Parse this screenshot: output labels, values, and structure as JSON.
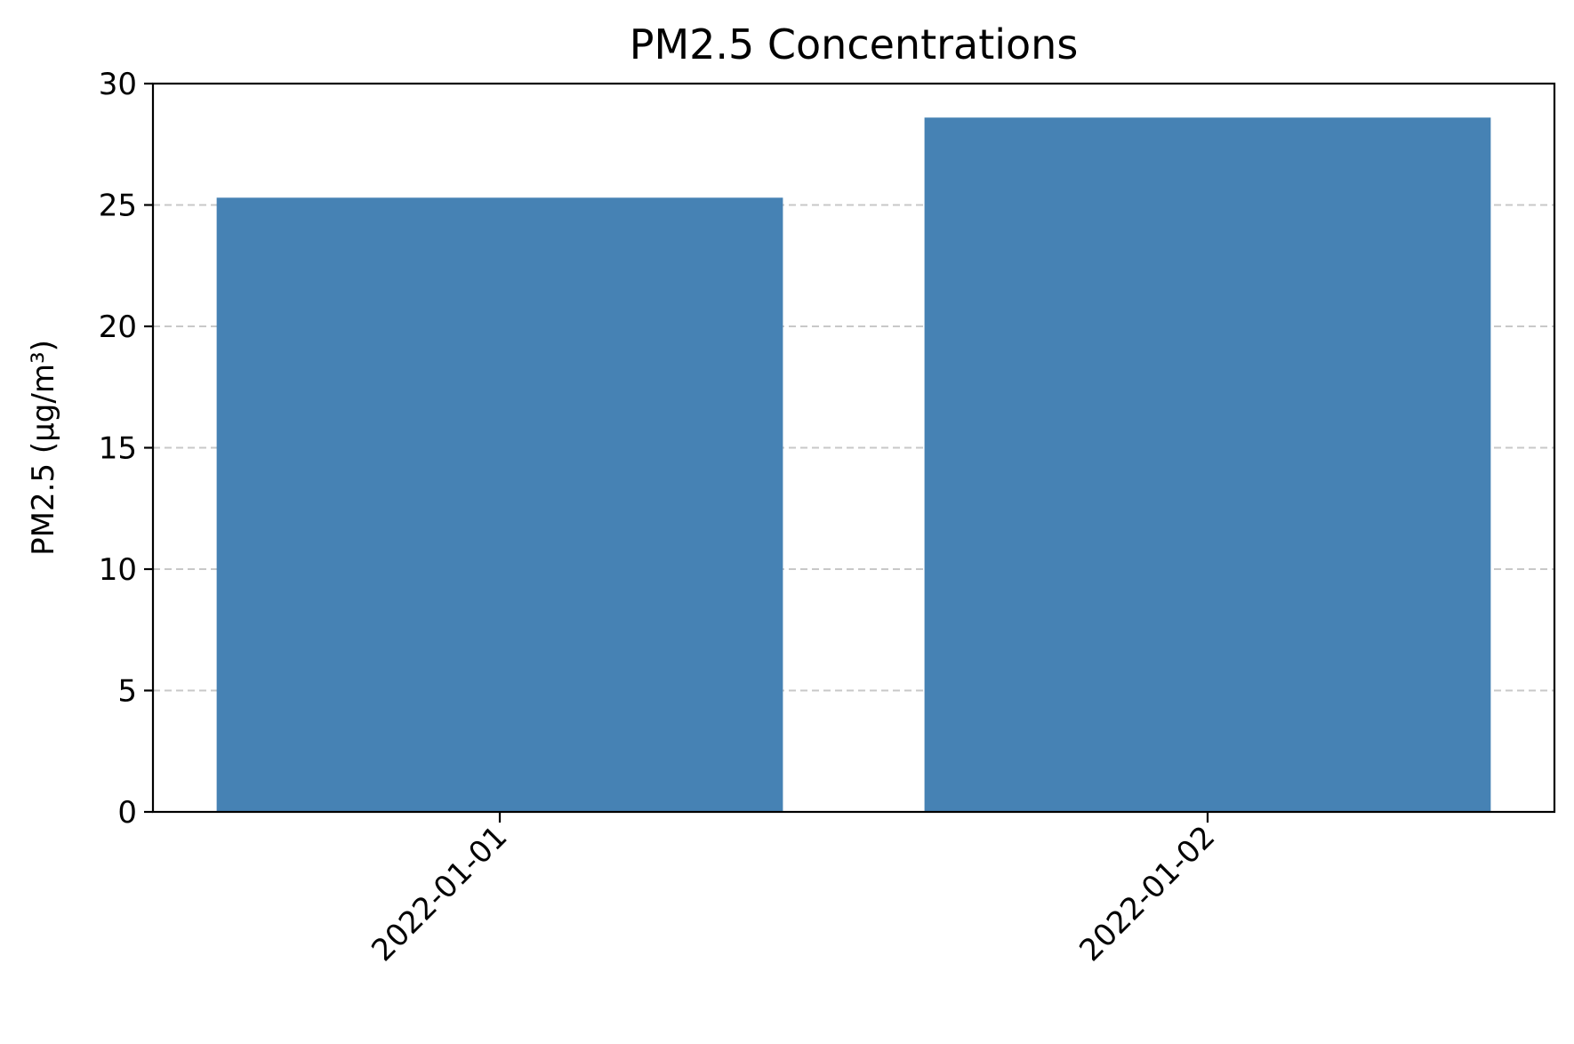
{
  "chart_data": {
    "type": "bar",
    "title": "PM2.5 Concentrations",
    "xlabel": "",
    "ylabel": "PM2.5 (µg/m³)",
    "categories": [
      "2022-01-01",
      "2022-01-02"
    ],
    "values": [
      25.3,
      28.6
    ],
    "ylim": [
      0,
      30
    ],
    "yticks": [
      0,
      5,
      10,
      15,
      20,
      25,
      30
    ],
    "grid": "y-axis dashed",
    "legend": "none",
    "xtick_rotation": 45,
    "colors": {
      "bar": "#4682b4",
      "grid": "#c8c8c8",
      "axis": "#000000"
    }
  }
}
